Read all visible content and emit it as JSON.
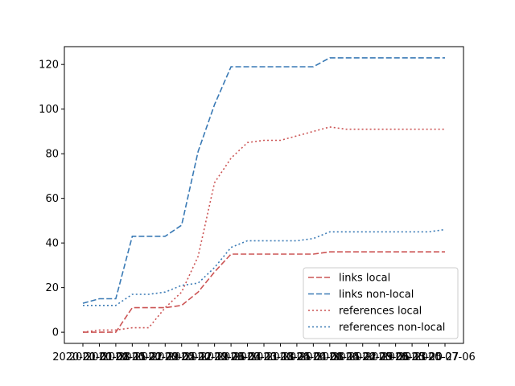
{
  "chart_data": {
    "type": "line",
    "title": "",
    "xlabel": "",
    "ylabel": "",
    "ylim": [
      -5,
      128
    ],
    "yticks": [
      0,
      20,
      40,
      60,
      80,
      100,
      120
    ],
    "grid": false,
    "legend_position": "lower-right",
    "x": [
      "2020-01-01",
      "2020-01-08",
      "2020-01-15",
      "2020-01-22",
      "2020-01-29",
      "2020-02-05",
      "2020-02-12",
      "2020-02-19",
      "2020-02-26",
      "2020-03-04",
      "2020-03-11",
      "2020-03-18",
      "2020-03-25",
      "2020-04-01",
      "2020-04-08",
      "2020-04-15",
      "2020-04-22",
      "2020-04-29",
      "2020-05-06",
      "2020-05-13",
      "2020-05-20",
      "2020-05-27",
      "2020-07-06"
    ],
    "x_tick_labels": [
      "2020-01-01",
      "2020-01-08",
      "2020-01-15",
      "2020-01-22",
      "2020-01-29",
      "2020-02-05",
      "2020-02-12",
      "2020-02-19",
      "2020-02-26",
      "2020-03-04",
      "2020-03-11",
      "2020-03-18",
      "2020-03-25",
      "2020-04-01",
      "2020-04-08",
      "2020-04-15",
      "2020-04-22",
      "2020-04-29",
      "2020-05-06",
      "2020-05-13",
      "2020-05-20",
      "2020-05-27",
      "2020-07-06"
    ],
    "series": [
      {
        "name": "links local",
        "color": "#cc5555",
        "dash": "dashed",
        "values": [
          0,
          0,
          0,
          11,
          11,
          11,
          12,
          18,
          27,
          35,
          35,
          35,
          35,
          35,
          35,
          36,
          36,
          36,
          36,
          36,
          36,
          36,
          36
        ]
      },
      {
        "name": "links non-local",
        "color": "#3a7ab5",
        "dash": "dashed",
        "values": [
          13,
          15,
          15,
          43,
          43,
          43,
          48,
          81,
          102,
          119,
          119,
          119,
          119,
          119,
          119,
          123,
          123,
          123,
          123,
          123,
          123,
          123,
          123
        ]
      },
      {
        "name": "references local",
        "color": "#cc5555",
        "dash": "dotted",
        "values": [
          0,
          1,
          1,
          2,
          2,
          11,
          18,
          34,
          67,
          78,
          85,
          86,
          86,
          88,
          90,
          92,
          91,
          91,
          91,
          91,
          91,
          91,
          91
        ]
      },
      {
        "name": "references non-local",
        "color": "#3a7ab5",
        "dash": "dotted",
        "values": [
          12,
          12,
          12,
          17,
          17,
          18,
          21,
          22,
          29,
          38,
          41,
          41,
          41,
          41,
          42,
          45,
          45,
          45,
          45,
          45,
          45,
          45,
          46
        ]
      }
    ]
  }
}
